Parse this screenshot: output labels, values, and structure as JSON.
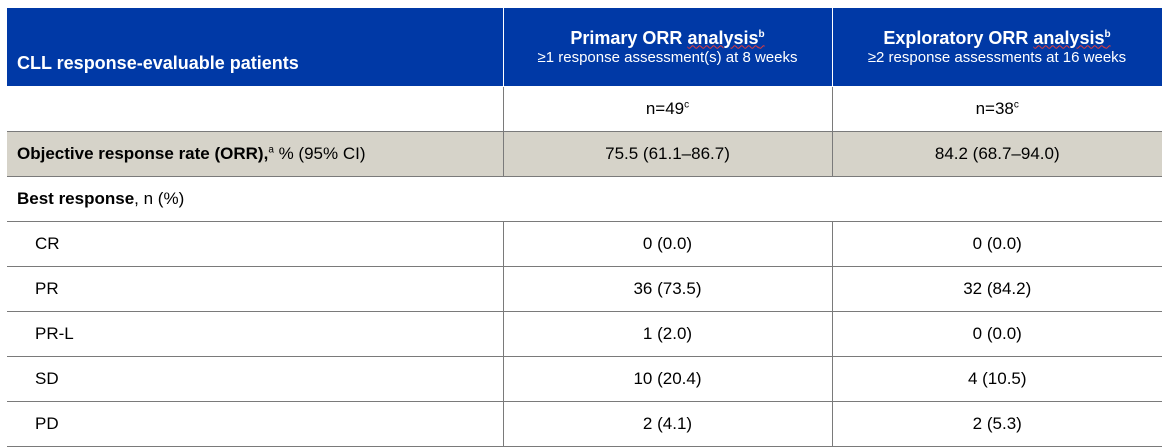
{
  "table": {
    "header": {
      "label": "CLL response-evaluable patients",
      "primary": {
        "title": "Primary ORR analysis",
        "sup": "b",
        "subtitle": "≥1 response assessment(s) at 8 weeks"
      },
      "exploratory": {
        "title": "Exploratory ORR analysis",
        "sup": "b",
        "subtitle": "≥2 response assessments at 16 weeks"
      }
    },
    "n_row": {
      "primary": {
        "text": "n=49",
        "sup": "c"
      },
      "exploratory": {
        "text": "n=38",
        "sup": "c"
      }
    },
    "orr_row": {
      "label_bold": "Objective response rate (ORR),",
      "label_sup": "a",
      "label_rest": " % (95% CI)",
      "primary": "75.5 (61.1–86.7)",
      "exploratory": "84.2 (68.7–94.0)"
    },
    "best_response": {
      "label_bold": "Best response",
      "label_rest": ", n (%)"
    },
    "rows": [
      {
        "label": "CR",
        "primary": "0 (0.0)",
        "exploratory": "0 (0.0)"
      },
      {
        "label": "PR",
        "primary": "36 (73.5)",
        "exploratory": "32 (84.2)"
      },
      {
        "label": "PR-L",
        "primary": "1 (2.0)",
        "exploratory": "0 (0.0)"
      },
      {
        "label": "SD",
        "primary": "10 (20.4)",
        "exploratory": "4 (10.5)"
      },
      {
        "label": "PD",
        "primary": "2 (4.1)",
        "exploratory": "2 (5.3)"
      }
    ]
  },
  "colors": {
    "header_bg": "#0039a6",
    "orr_row_bg": "#d6d3c9"
  }
}
